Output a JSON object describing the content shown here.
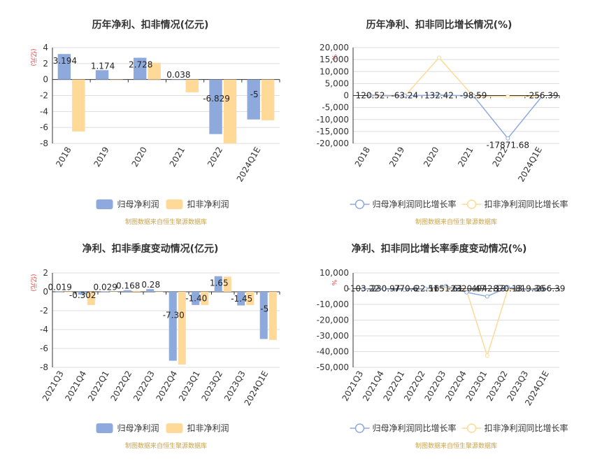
{
  "chart_data": [
    {
      "type": "bar",
      "title": "历年净利、扣非情况(亿元)",
      "ylabel": "(亿元)",
      "categories": [
        "2018",
        "2019",
        "2020",
        "2021",
        "2022",
        "2024Q1E"
      ],
      "ylim": [
        -8,
        4
      ],
      "yticks": [
        4,
        2,
        0,
        -2,
        -4,
        -6,
        -8
      ],
      "grid": true,
      "legend_position": "bottom",
      "series": [
        {
          "name": "归母净利润",
          "color": "#8eaadc",
          "values": [
            3.194,
            1.174,
            2.728,
            0.038,
            -6.829,
            -5.0
          ],
          "labels": [
            "3.194",
            "1.174",
            "2.728",
            "0.038",
            "-6.829",
            "-5"
          ]
        },
        {
          "name": "扣非净利润",
          "color": "#ffd998",
          "values": [
            -6.5,
            0.0,
            2.1,
            -1.6,
            -8.0,
            -5.1
          ],
          "labels": null
        }
      ],
      "source": "制图数据来自恒生聚源数据库"
    },
    {
      "type": "line",
      "title": "历年净利、扣非同比增长情况(%)",
      "ylabel": "%",
      "categories": [
        "2018",
        "2019",
        "2020",
        "2021",
        "2022",
        "2024Q1E"
      ],
      "ylim": [
        -20000,
        20000
      ],
      "yticks": [
        20000,
        15000,
        10000,
        5000,
        0,
        -5000,
        -10000,
        -15000,
        -20000
      ],
      "ytick_labels": [
        "20,000",
        "15,000",
        "10,000",
        "5,000",
        "0",
        "-5,000",
        "-10,000",
        "-15,000",
        "-20,000"
      ],
      "grid": true,
      "legend_position": "bottom",
      "series": [
        {
          "name": "归母净利润同比增长率",
          "color": "#8eaadc",
          "values": [
            120.52,
            -63.24,
            132.42,
            -98.59,
            -17871.68,
            -256.39
          ],
          "labels": [
            "120.52",
            "-63.24",
            "132.42",
            "-98.59",
            "-17871.68",
            "-256.39"
          ]
        },
        {
          "name": "扣非净利润同比增长率",
          "color": "#ffd998",
          "values": [
            -200,
            -300,
            15800,
            -400,
            -400,
            -300
          ],
          "labels": null
        }
      ],
      "source": "制图数据来自恒生聚源数据库"
    },
    {
      "type": "bar",
      "title": "净利、扣非季度变动情况(亿元)",
      "ylabel": "(亿元)",
      "categories": [
        "2021Q3",
        "2021Q4",
        "2022Q1",
        "2022Q2",
        "2022Q3",
        "2022Q4",
        "2023Q1",
        "2023Q2",
        "2023Q3",
        "2024Q1E"
      ],
      "ylim": [
        -8,
        2
      ],
      "yticks": [
        2,
        0,
        -2,
        -4,
        -6,
        -8
      ],
      "grid": true,
      "legend_position": "bottom",
      "series": [
        {
          "name": "归母净利润",
          "color": "#8eaadc",
          "values": [
            0.019,
            -0.302,
            0.029,
            0.168,
            0.28,
            -7.3,
            -1.4,
            1.65,
            -1.45,
            -5.0
          ],
          "labels": [
            "0.019",
            "-0.302",
            "0.029",
            "0.168",
            "0.28",
            "-7.30",
            "-1.40",
            "1.65",
            "-1.45",
            "-5"
          ]
        },
        {
          "name": "扣非净利润",
          "color": "#ffd998",
          "values": [
            -0.05,
            -1.4,
            0.0,
            0.1,
            0.0,
            -7.7,
            -1.4,
            1.6,
            -1.4,
            -5.1
          ],
          "labels": null
        }
      ],
      "source": "制图数据来自恒生聚源数据库"
    },
    {
      "type": "line",
      "title": "净利、扣非同比增长率季度变动情况(%)",
      "ylabel": "%",
      "categories": [
        "2021Q3",
        "2021Q4",
        "2022Q1",
        "2022Q2",
        "2022Q3",
        "2022Q4",
        "2023Q1",
        "2023Q2",
        "2023Q3",
        "2024Q1E"
      ],
      "ylim": [
        -50000,
        10000
      ],
      "yticks": [
        10000,
        0,
        -10000,
        -20000,
        -30000,
        -40000,
        -50000
      ],
      "ytick_labels": [
        "10,000",
        "0",
        "-10,000",
        "-20,000",
        "-30,000",
        "-40,000",
        "-50,000"
      ],
      "grid": true,
      "legend_position": "bottom",
      "series": [
        {
          "name": "归母净利润同比增长率",
          "color": "#8eaadc",
          "values": [
            -103.22,
            -230.97,
            -770.6,
            -22.51,
            1651.61,
            -2320.47,
            -4942.13,
            870.13,
            -819.36,
            -256.39
          ],
          "labels": [
            "-103.22",
            "-230.97",
            "-770.6",
            "-22.51",
            "1651.61",
            "-2320.47",
            "-4942.13",
            "870.13",
            "-819.36",
            "-256.39"
          ]
        },
        {
          "name": "扣非净利润同比增长率",
          "color": "#ffd998",
          "values": [
            -200,
            -300,
            -500,
            -300,
            400,
            -1200,
            -42600,
            -500,
            -300,
            -300
          ],
          "labels": null
        }
      ],
      "source": "制图数据来自恒生聚源数据库"
    }
  ]
}
